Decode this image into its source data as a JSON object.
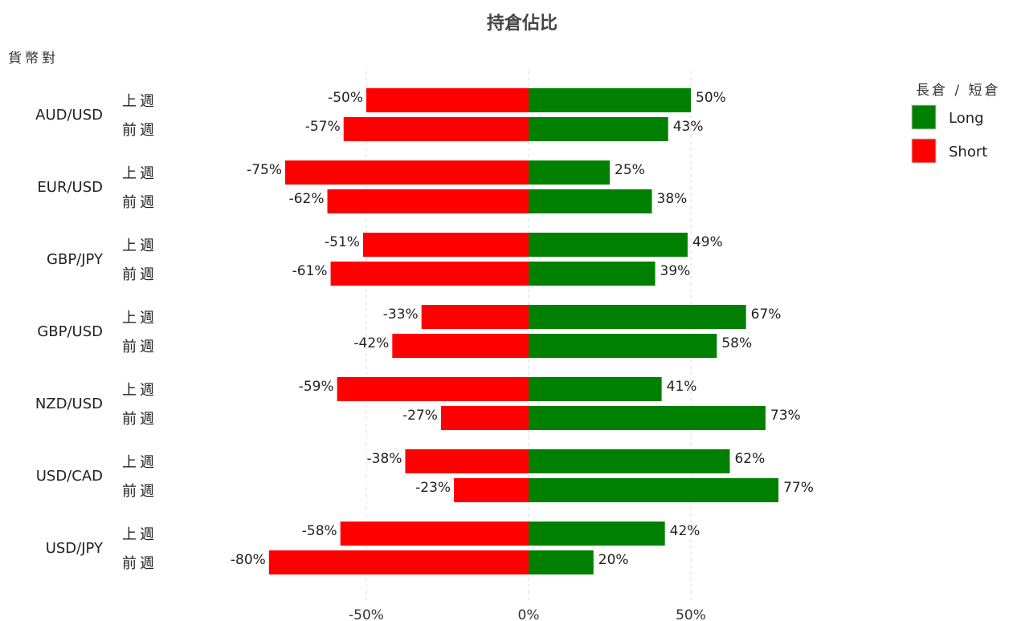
{
  "chart_data": {
    "type": "bar",
    "orientation": "horizontal-diverging",
    "title": "持倉佔比",
    "ylabel": "貨幣對",
    "xlim": [
      -80,
      80
    ],
    "x_ticks": [
      -50,
      0,
      50
    ],
    "x_tick_labels": [
      "-50%",
      "0%",
      "50%"
    ],
    "grid": true,
    "legend_title": "長倉 / 短倉",
    "legend_position": "top-right",
    "categories": [
      "AUD/USD",
      "EUR/USD",
      "GBP/JPY",
      "GBP/USD",
      "NZD/USD",
      "USD/CAD",
      "USD/JPY"
    ],
    "sub_categories": [
      "上週",
      "前週"
    ],
    "series": [
      {
        "name": "Long",
        "color": "#008000",
        "values": [
          [
            50,
            43
          ],
          [
            25,
            38
          ],
          [
            49,
            39
          ],
          [
            67,
            58
          ],
          [
            41,
            73
          ],
          [
            62,
            77
          ],
          [
            42,
            20
          ]
        ]
      },
      {
        "name": "Short",
        "color": "#ff0000",
        "values": [
          [
            -50,
            -57
          ],
          [
            -75,
            -62
          ],
          [
            -51,
            -61
          ],
          [
            -33,
            -42
          ],
          [
            -59,
            -27
          ],
          [
            -38,
            -23
          ],
          [
            -58,
            -80
          ]
        ]
      }
    ],
    "label_suffix": "%"
  }
}
